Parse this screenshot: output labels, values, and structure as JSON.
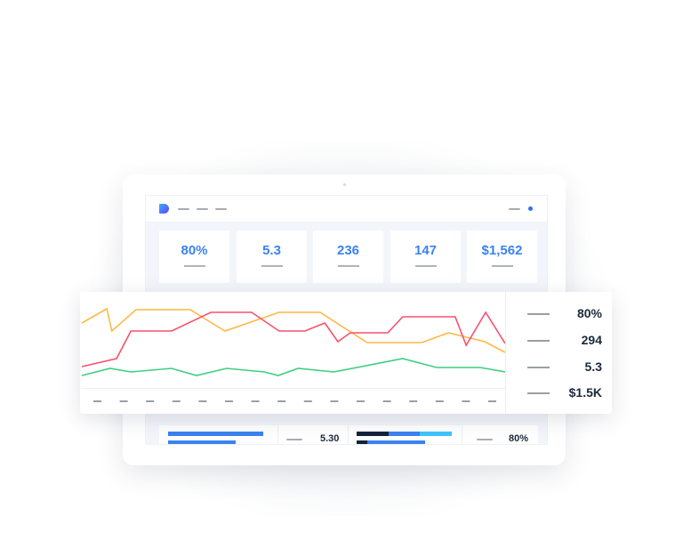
{
  "header": {
    "logo": "dashboard-logo",
    "nav_placeholders": 3,
    "status_dot_color": "#2f6fe8"
  },
  "kpis": [
    {
      "value": "80%"
    },
    {
      "value": "5.3"
    },
    {
      "value": "236"
    },
    {
      "value": "147"
    },
    {
      "value": "$1,562"
    }
  ],
  "chart_panel": {
    "values": [
      "80%",
      "294",
      "5.3",
      "$1.5K"
    ]
  },
  "bottom_row": {
    "left_value": "5.30",
    "right_value": "80%"
  },
  "colors": {
    "accent": "#3b82f0",
    "yellow": "#fdb944",
    "red": "#f7506d",
    "green": "#3ecf7f",
    "dark": "#13243a",
    "cyan": "#3ec4fb"
  },
  "chart_data": {
    "type": "line",
    "title": "",
    "xlabel": "",
    "ylabel": "",
    "xlim": [
      0,
      100
    ],
    "ylim": [
      0,
      100
    ],
    "grid": false,
    "x_tick_count": 16,
    "series": [
      {
        "color": "#fdb944",
        "x": [
          0,
          5.9,
          7.1,
          12.8,
          25.6,
          33.8,
          46.6,
          56.3,
          67.4,
          80.3,
          86.6,
          95.2,
          100
        ],
        "y": [
          73,
          89,
          64,
          88,
          88,
          64,
          85,
          85,
          51,
          51,
          62,
          52,
          40
        ]
      },
      {
        "color": "#f7506d",
        "x": [
          0,
          8.2,
          11.6,
          21.2,
          30.5,
          40.1,
          46.6,
          52.7,
          57.4,
          60.5,
          63.4,
          72.3,
          75.8,
          88.2,
          90.8,
          95.4,
          100
        ],
        "y": [
          24,
          33,
          64,
          64,
          85,
          85,
          64,
          64,
          73,
          52,
          62,
          62,
          80,
          80,
          48,
          85,
          50
        ]
      },
      {
        "color": "#3ecf7f",
        "x": [
          0,
          6.7,
          11.6,
          21.2,
          27.1,
          34.2,
          43.1,
          46.4,
          51.1,
          59.5,
          75.8,
          83.8,
          94.1,
          100
        ],
        "y": [
          14,
          22,
          18,
          22,
          14,
          22,
          18,
          14,
          22,
          18,
          33,
          23,
          23,
          18
        ]
      }
    ]
  }
}
